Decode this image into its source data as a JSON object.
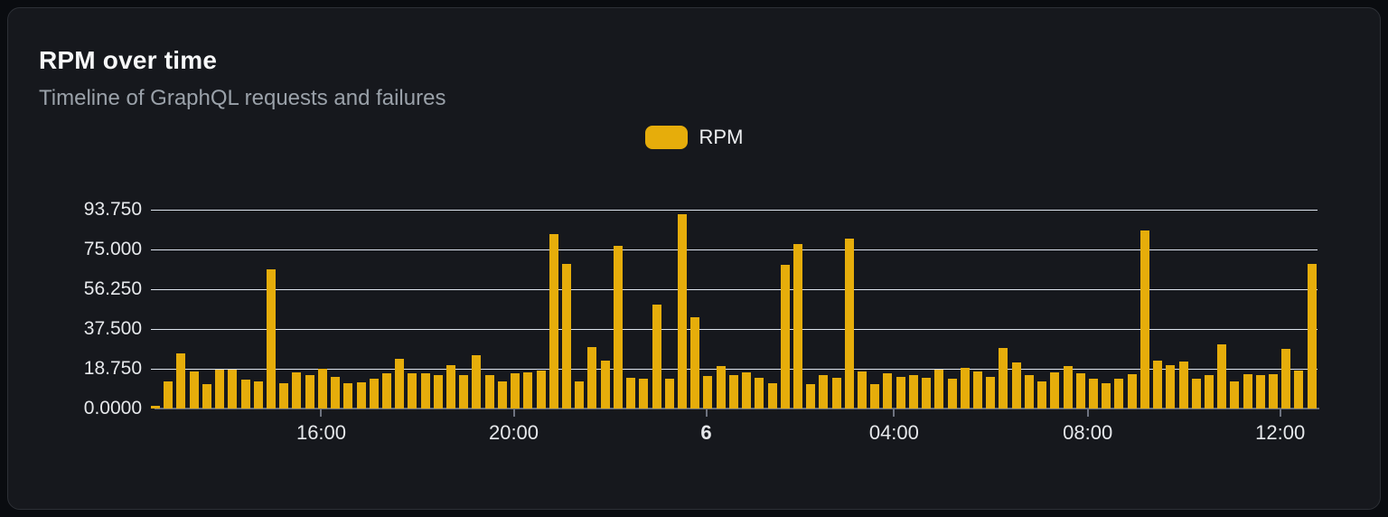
{
  "card": {
    "title": "RPM over time",
    "subtitle": "Timeline of GraphQL requests and failures"
  },
  "legend": {
    "items": [
      {
        "label": "RPM",
        "color": "#e6ad0b"
      }
    ]
  },
  "colors": {
    "background": "#16181d",
    "page_background": "#0a0c10",
    "bar": "#e6ad0b",
    "gridline": "#dde4ee",
    "axis": "#666c78",
    "text_primary": "#f7f8f9",
    "text_secondary": "#9aa1a9",
    "tick_text": "#e6e8eb"
  },
  "chart_data": {
    "type": "bar",
    "title": "RPM over time",
    "subtitle": "Timeline of GraphQL requests and failures",
    "series_name": "RPM",
    "xlabel": "",
    "ylabel": "",
    "ylim": [
      0,
      93.75
    ],
    "grid": true,
    "legend_position": "top-center",
    "y_ticks": [
      {
        "label": "0.0000",
        "value": 0
      },
      {
        "label": "18.750",
        "value": 18.75
      },
      {
        "label": "37.500",
        "value": 37.5
      },
      {
        "label": "56.250",
        "value": 56.25
      },
      {
        "label": "75.000",
        "value": 75
      },
      {
        "label": "93.750",
        "value": 93.75
      }
    ],
    "x_ticks": [
      {
        "label": "16:00",
        "pos_pct": 14.6,
        "bold": false
      },
      {
        "label": "20:00",
        "pos_pct": 31.1,
        "bold": false
      },
      {
        "label": "6",
        "pos_pct": 47.6,
        "bold": true
      },
      {
        "label": "04:00",
        "pos_pct": 63.7,
        "bold": false
      },
      {
        "label": "08:00",
        "pos_pct": 80.3,
        "bold": false
      },
      {
        "label": "12:00",
        "pos_pct": 96.8,
        "bold": false
      }
    ],
    "values": [
      1.3,
      13,
      26,
      17.3,
      11.4,
      18.2,
      18.2,
      13.5,
      12.8,
      65.6,
      12,
      17,
      15.9,
      18.7,
      14.9,
      12,
      12.5,
      14.2,
      16.6,
      23.4,
      16.6,
      16.8,
      15.9,
      20.4,
      15.9,
      25.3,
      15.9,
      12.8,
      16.8,
      17,
      17.9,
      82.4,
      68.1,
      12.7,
      29,
      22.5,
      76.8,
      14.7,
      14,
      49,
      14,
      91.6,
      43,
      15.3,
      20.2,
      15.9,
      17,
      14.6,
      12,
      67.7,
      77.7,
      11.6,
      15.6,
      14.6,
      80.1,
      17.5,
      11.6,
      16.6,
      14.9,
      15.6,
      14.6,
      18.2,
      14.2,
      19.2,
      17.5,
      14.9,
      28.4,
      21.6,
      15.6,
      13,
      17,
      20.2,
      16.6,
      13.9,
      11.8,
      14.2,
      16.3,
      83.8,
      22.7,
      20.6,
      22.3,
      13.9,
      15.6,
      30.1,
      12.8,
      16.3,
      15.9,
      16.3,
      28.1,
      17.8,
      68.2
    ]
  }
}
